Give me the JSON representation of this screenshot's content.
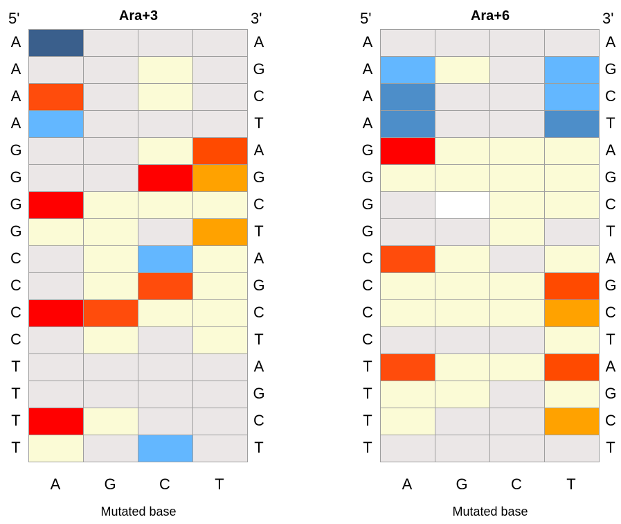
{
  "chart_data": [
    {
      "type": "heatmap",
      "title": "Ara+3",
      "five_prime_label": "5'",
      "three_prime_label": "3'",
      "left_labels": [
        "A",
        "A",
        "A",
        "A",
        "G",
        "G",
        "G",
        "G",
        "C",
        "C",
        "C",
        "C",
        "T",
        "T",
        "T",
        "T"
      ],
      "right_labels": [
        "A",
        "G",
        "C",
        "T",
        "A",
        "G",
        "C",
        "T",
        "A",
        "G",
        "C",
        "T",
        "A",
        "G",
        "C",
        "T"
      ],
      "columns": [
        "A",
        "G",
        "C",
        "T"
      ],
      "xlabel": "Mutated base",
      "colors": [
        [
          "#3a5f8c",
          "#ebe7e7",
          "#ebe7e7",
          "#ebe7e7"
        ],
        [
          "#ebe7e7",
          "#ebe7e7",
          "#fbfbd6",
          "#ebe7e7"
        ],
        [
          "#ff4c0c",
          "#ebe7e7",
          "#fbfbd6",
          "#ebe7e7"
        ],
        [
          "#63b7ff",
          "#ebe7e7",
          "#ebe7e7",
          "#ebe7e7"
        ],
        [
          "#ebe7e7",
          "#ebe7e7",
          "#fbfbd6",
          "#ff4a00"
        ],
        [
          "#ebe7e7",
          "#ebe7e7",
          "#ff0000",
          "#ffa200"
        ],
        [
          "#ff0000",
          "#fbfbd6",
          "#fbfbd6",
          "#fbfbd6"
        ],
        [
          "#fbfbd6",
          "#fbfbd6",
          "#ebe7e7",
          "#ffa200"
        ],
        [
          "#ebe7e7",
          "#fbfbd6",
          "#63b7ff",
          "#fbfbd6"
        ],
        [
          "#ebe7e7",
          "#fbfbd6",
          "#ff4c0c",
          "#fbfbd6"
        ],
        [
          "#ff0000",
          "#ff4c0c",
          "#fbfbd6",
          "#fbfbd6"
        ],
        [
          "#ebe7e7",
          "#fbfbd6",
          "#ebe7e7",
          "#fbfbd6"
        ],
        [
          "#ebe7e7",
          "#ebe7e7",
          "#ebe7e7",
          "#ebe7e7"
        ],
        [
          "#ebe7e7",
          "#ebe7e7",
          "#ebe7e7",
          "#ebe7e7"
        ],
        [
          "#ff0000",
          "#fbfbd6",
          "#ebe7e7",
          "#ebe7e7"
        ],
        [
          "#fbfbd6",
          "#ebe7e7",
          "#63b7ff",
          "#ebe7e7"
        ]
      ]
    },
    {
      "type": "heatmap",
      "title": "Ara+6",
      "five_prime_label": "5'",
      "three_prime_label": "3'",
      "left_labels": [
        "A",
        "A",
        "A",
        "A",
        "G",
        "G",
        "G",
        "G",
        "C",
        "C",
        "C",
        "C",
        "T",
        "T",
        "T",
        "T"
      ],
      "right_labels": [
        "A",
        "G",
        "C",
        "T",
        "A",
        "G",
        "C",
        "T",
        "A",
        "G",
        "C",
        "T",
        "A",
        "G",
        "C",
        "T"
      ],
      "columns": [
        "A",
        "G",
        "C",
        "T"
      ],
      "xlabel": "Mutated base",
      "colors": [
        [
          "#ebe7e7",
          "#ebe7e7",
          "#ebe7e7",
          "#ebe7e7"
        ],
        [
          "#63b7ff",
          "#fbfbd6",
          "#ebe7e7",
          "#63b7ff"
        ],
        [
          "#4d8ec9",
          "#ebe7e7",
          "#ebe7e7",
          "#63b7ff"
        ],
        [
          "#4d8ec9",
          "#ebe7e7",
          "#ebe7e7",
          "#4d8ec9"
        ],
        [
          "#ff0000",
          "#fbfbd6",
          "#fbfbd6",
          "#fbfbd6"
        ],
        [
          "#fbfbd6",
          "#fbfbd6",
          "#fbfbd6",
          "#fbfbd6"
        ],
        [
          "#ebe7e7",
          "#ffffff",
          "#fbfbd6",
          "#fbfbd6"
        ],
        [
          "#ebe7e7",
          "#ebe7e7",
          "#fbfbd6",
          "#ebe7e7"
        ],
        [
          "#ff4c0c",
          "#fbfbd6",
          "#ebe7e7",
          "#fbfbd6"
        ],
        [
          "#fbfbd6",
          "#fbfbd6",
          "#fbfbd6",
          "#ff4a00"
        ],
        [
          "#fbfbd6",
          "#fbfbd6",
          "#fbfbd6",
          "#ffa200"
        ],
        [
          "#ebe7e7",
          "#ebe7e7",
          "#ebe7e7",
          "#fbfbd6"
        ],
        [
          "#ff4c0c",
          "#fbfbd6",
          "#fbfbd6",
          "#ff4a00"
        ],
        [
          "#fbfbd6",
          "#fbfbd6",
          "#ebe7e7",
          "#fbfbd6"
        ],
        [
          "#fbfbd6",
          "#ebe7e7",
          "#ebe7e7",
          "#ffa200"
        ],
        [
          "#ebe7e7",
          "#ebe7e7",
          "#ebe7e7",
          "#ebe7e7"
        ]
      ]
    }
  ]
}
